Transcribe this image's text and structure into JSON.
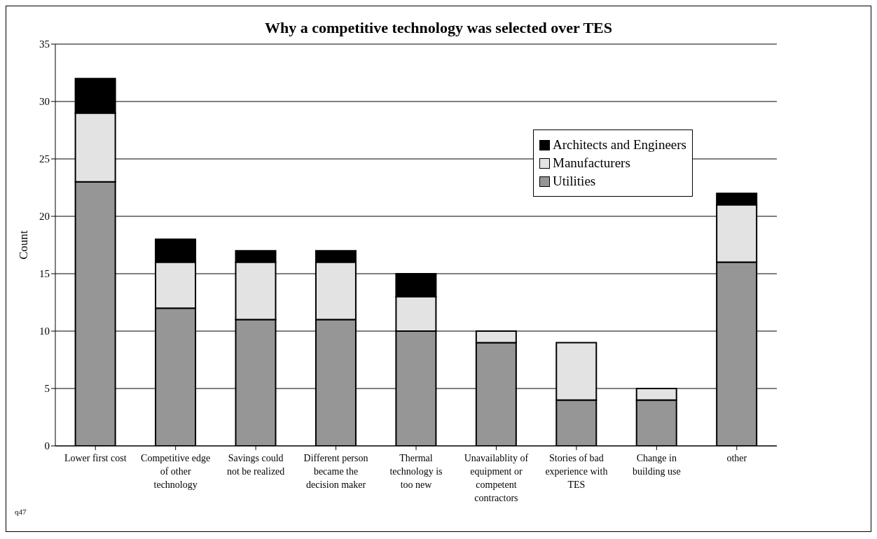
{
  "chart_data": {
    "type": "bar",
    "title": "Why a competitive technology was selected over TES",
    "ylabel": "Count",
    "stacked": true,
    "categories": [
      "Lower first cost",
      "Competitive edge of other technology",
      "Savings could not be realized",
      "Different person became the decision maker",
      "Thermal technology is too new",
      "Unavailablity of equipment or competent contractors",
      "Stories of bad experience with TES",
      "Change in building use",
      "other"
    ],
    "series": [
      {
        "name": "Utilities",
        "color": "#969696",
        "values": [
          23,
          12,
          11,
          11,
          10,
          9,
          4,
          4,
          16
        ]
      },
      {
        "name": "Manufacturers",
        "color": "#e3e3e3",
        "values": [
          6,
          4,
          5,
          5,
          3,
          1,
          5,
          1,
          5
        ]
      },
      {
        "name": "Architects and Engineers",
        "color": "#000000",
        "values": [
          3,
          2,
          1,
          1,
          2,
          0,
          0,
          0,
          1
        ]
      }
    ],
    "ylim": [
      0,
      35
    ],
    "yticks": [
      0,
      5,
      10,
      15,
      20,
      25,
      30,
      35
    ],
    "grid": "y",
    "legend": "top right",
    "annotations": [
      "q47"
    ]
  }
}
